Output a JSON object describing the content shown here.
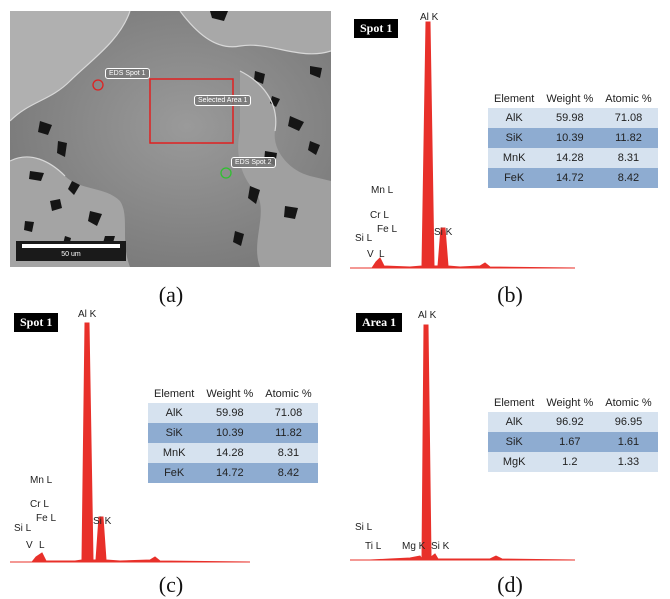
{
  "captions": [
    "(a)",
    "(b)",
    "(c)",
    "(d)"
  ],
  "sem": {
    "labels": {
      "spot1": "EDS Spot 1",
      "spot2": "EDS Spot 2",
      "area1": "Selected Area 1"
    },
    "scalebar": "50 um",
    "colors": {
      "spot1": "#e02020",
      "spot2": "#30c030",
      "area": "#e02020"
    }
  },
  "chart_data": [
    {
      "type": "table",
      "panel": "(b)",
      "badge": "Spot 1",
      "columns": [
        "Element",
        "Weight %",
        "Atomic %"
      ],
      "rows": [
        [
          "AlK",
          "59.98",
          "71.08"
        ],
        [
          "SiK",
          "10.39",
          "11.82"
        ],
        [
          "MnK",
          "14.28",
          "8.31"
        ],
        [
          "FeK",
          "14.72",
          "8.42"
        ]
      ],
      "peak_labels": [
        "Al K",
        "Si K",
        "Mn L",
        "Cr L",
        "Fe L",
        "Si L",
        "V",
        "L"
      ],
      "series_color": "#e8302a"
    },
    {
      "type": "table",
      "panel": "(c)",
      "badge": "Spot 1",
      "columns": [
        "Element",
        "Weight %",
        "Atomic %"
      ],
      "rows": [
        [
          "AlK",
          "59.98",
          "71.08"
        ],
        [
          "SiK",
          "10.39",
          "11.82"
        ],
        [
          "MnK",
          "14.28",
          "8.31"
        ],
        [
          "FeK",
          "14.72",
          "8.42"
        ]
      ],
      "peak_labels": [
        "Al K",
        "Si K",
        "Mn L",
        "Cr L",
        "Fe L",
        "Si L",
        "V",
        "L"
      ],
      "series_color": "#e8302a"
    },
    {
      "type": "table",
      "panel": "(d)",
      "badge": "Area 1",
      "columns": [
        "Element",
        "Weight %",
        "Atomic %"
      ],
      "rows": [
        [
          "AlK",
          "96.92",
          "96.95"
        ],
        [
          "SiK",
          "1.67",
          "1.61"
        ],
        [
          "MgK",
          "1.2",
          "1.33"
        ]
      ],
      "peak_labels": [
        "Al K",
        "Mg K",
        "Si K",
        "Si L",
        "Ti L"
      ],
      "series_color": "#e8302a"
    }
  ]
}
